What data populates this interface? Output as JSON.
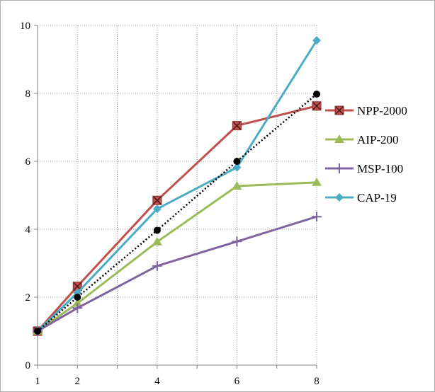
{
  "chart_data": {
    "type": "line",
    "title": "",
    "xlabel": "",
    "ylabel": "",
    "x": [
      1,
      2,
      4,
      6,
      8
    ],
    "x_ticks": [
      1,
      2,
      4,
      6,
      8
    ],
    "xlim": [
      1,
      8
    ],
    "ylim": [
      0,
      10
    ],
    "y_ticks": [
      0,
      2,
      4,
      6,
      8,
      10
    ],
    "grid": "dotted, vertical lines at every integer x, horizontal lines every 2",
    "legend_position": "right",
    "series": [
      {
        "name": "NPP-2000",
        "values": [
          1.0,
          2.32,
          4.85,
          7.05,
          7.63
        ],
        "color": "#c0504d",
        "marker": "x-square"
      },
      {
        "name": "AIP-200",
        "values": [
          1.0,
          1.82,
          3.63,
          5.27,
          5.38
        ],
        "color": "#9bbb59",
        "marker": "triangle"
      },
      {
        "name": "MSP-100",
        "values": [
          1.0,
          1.68,
          2.92,
          3.64,
          4.37
        ],
        "color": "#8064a2",
        "marker": "plus"
      },
      {
        "name": "CAP-19",
        "values": [
          1.0,
          2.13,
          4.6,
          5.82,
          9.56
        ],
        "color": "#4bacc6",
        "marker": "diamond"
      },
      {
        "values": [
          1.0,
          2.0,
          3.97,
          6.0,
          7.98
        ],
        "color": "#000000",
        "marker": "circle",
        "line_style": "dotted"
      }
    ]
  }
}
